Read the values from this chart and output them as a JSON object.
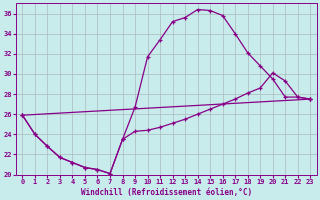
{
  "xlabel": "Windchill (Refroidissement éolien,°C)",
  "bg_color": "#c8ecec",
  "line_color": "#880088",
  "grid_color": "#aabbbb",
  "xlim": [
    -0.5,
    23.5
  ],
  "ylim": [
    20,
    37
  ],
  "xticks": [
    0,
    1,
    2,
    3,
    4,
    5,
    6,
    7,
    8,
    9,
    10,
    11,
    12,
    13,
    14,
    15,
    16,
    17,
    18,
    19,
    20,
    21,
    22,
    23
  ],
  "yticks": [
    20,
    22,
    24,
    26,
    28,
    30,
    32,
    34,
    36
  ],
  "line1_x": [
    0,
    1,
    2,
    3,
    4,
    5,
    6,
    7,
    8,
    9,
    10,
    11,
    12,
    13,
    14,
    15,
    16,
    17,
    18,
    19,
    20,
    21,
    22,
    23
  ],
  "line1_y": [
    25.9,
    24.0,
    22.8,
    21.7,
    21.2,
    20.7,
    20.5,
    20.1,
    23.5,
    26.7,
    31.7,
    33.4,
    35.2,
    35.6,
    36.4,
    36.3,
    35.8,
    34.0,
    32.1,
    30.8,
    29.5,
    27.7,
    27.7,
    27.5
  ],
  "line2_x": [
    0,
    1,
    2,
    3,
    4,
    5,
    6,
    7,
    8,
    9,
    10,
    11,
    12,
    13,
    14,
    15,
    16,
    17,
    18,
    19,
    20,
    21,
    22,
    23
  ],
  "line2_y": [
    25.9,
    24.0,
    22.8,
    21.7,
    21.2,
    20.7,
    20.5,
    20.1,
    23.5,
    24.3,
    24.4,
    24.7,
    25.1,
    25.5,
    26.0,
    26.5,
    27.0,
    27.5,
    28.1,
    28.6,
    30.1,
    29.3,
    27.7,
    27.5
  ],
  "line3_x": [
    0,
    23
  ],
  "line3_y": [
    25.9,
    27.5
  ]
}
